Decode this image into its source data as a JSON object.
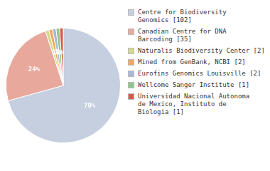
{
  "chart_data": {
    "type": "pie",
    "categories": [
      "Centre for Biodiversity\nGenomics [102]",
      "Canadian Centre for DNA\nBarcoding [35]",
      "Naturalis Biodiversity Center [2]",
      "Mined from GenBank, NCBI [2]",
      "Eurofins Genomics Louisville [2]",
      "Wellcome Sanger Institute [1]",
      "Universidad Nacional Autonoma\nde Mexico, Instituto de\nBiologia [1]"
    ],
    "values": [
      70,
      24,
      1,
      1,
      1,
      1,
      1
    ],
    "value_labels": [
      "70%",
      "24%",
      null,
      "1%",
      "1%",
      "1%",
      null
    ],
    "colors": [
      "#c5cfe0",
      "#e8a89c",
      "#d4d98b",
      "#f0a860",
      "#a8b8d8",
      "#8bc88b",
      "#d45a4a"
    ],
    "data_labels": true,
    "legend": "right"
  }
}
